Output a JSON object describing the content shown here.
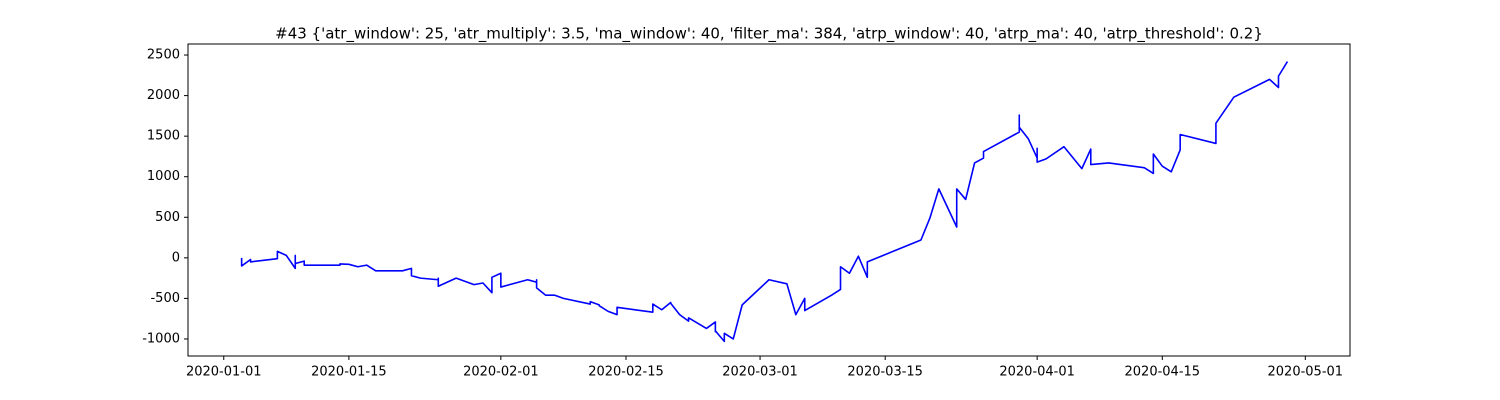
{
  "chart_data": {
    "type": "line",
    "title": "#43 {'atr_window': 25, 'atr_multiply': 3.5, 'ma_window': 40, 'filter_ma': 384, 'atrp_window': 40, 'atrp_ma': 40, 'atrp_threshold': 0.2}",
    "x": [
      "2020-01-03",
      "2020-01-03",
      "2020-01-04",
      "2020-01-04",
      "2020-01-07",
      "2020-01-07",
      "2020-01-08",
      "2020-01-09",
      "2020-01-09",
      "2020-01-09",
      "2020-01-10",
      "2020-01-10",
      "2020-01-14",
      "2020-01-14",
      "2020-01-15",
      "2020-01-16",
      "2020-01-17",
      "2020-01-18",
      "2020-01-21",
      "2020-01-22",
      "2020-01-22",
      "2020-01-22",
      "2020-01-23",
      "2020-01-25",
      "2020-01-25",
      "2020-01-25",
      "2020-01-27",
      "2020-01-29",
      "2020-01-30",
      "2020-01-31",
      "2020-01-31",
      "2020-02-01",
      "2020-02-01",
      "2020-02-04",
      "2020-02-05",
      "2020-02-05",
      "2020-02-05",
      "2020-02-06",
      "2020-02-07",
      "2020-02-08",
      "2020-02-11",
      "2020-02-11",
      "2020-02-12",
      "2020-02-12",
      "2020-02-13",
      "2020-02-14",
      "2020-02-14",
      "2020-02-18",
      "2020-02-18",
      "2020-02-19",
      "2020-02-20",
      "2020-02-20",
      "2020-02-21",
      "2020-02-22",
      "2020-02-22",
      "2020-02-24",
      "2020-02-25",
      "2020-02-25",
      "2020-02-25",
      "2020-02-26",
      "2020-02-26",
      "2020-02-27",
      "2020-02-28",
      "2020-03-02",
      "2020-03-04",
      "2020-03-05",
      "2020-03-06",
      "2020-03-06",
      "2020-03-09",
      "2020-03-10",
      "2020-03-10",
      "2020-03-11",
      "2020-03-12",
      "2020-03-13",
      "2020-03-13",
      "2020-03-13",
      "2020-03-19",
      "2020-03-20",
      "2020-03-21",
      "2020-03-23",
      "2020-03-23",
      "2020-03-23",
      "2020-03-24",
      "2020-03-25",
      "2020-03-26",
      "2020-03-26",
      "2020-03-30",
      "2020-03-30",
      "2020-03-30",
      "2020-03-31",
      "2020-04-01",
      "2020-04-01",
      "2020-04-01",
      "2020-04-02",
      "2020-04-04",
      "2020-04-06",
      "2020-04-07",
      "2020-04-07",
      "2020-04-09",
      "2020-04-13",
      "2020-04-14",
      "2020-04-14",
      "2020-04-14",
      "2020-04-14",
      "2020-04-15",
      "2020-04-16",
      "2020-04-17",
      "2020-04-17",
      "2020-04-21",
      "2020-04-21",
      "2020-04-23",
      "2020-04-27",
      "2020-04-28",
      "2020-04-28",
      "2020-04-29"
    ],
    "series": [
      {
        "color": "#0000ff",
        "values": [
          0,
          -100,
          -20,
          -50,
          -10,
          80,
          30,
          -130,
          30,
          -70,
          -40,
          -90,
          -90,
          -75,
          -80,
          -110,
          -90,
          -160,
          -160,
          -130,
          -150,
          -220,
          -250,
          -270,
          -250,
          -350,
          -250,
          -330,
          -310,
          -430,
          -240,
          -190,
          -360,
          -270,
          -300,
          -270,
          -370,
          -460,
          -460,
          -500,
          -570,
          -540,
          -580,
          -590,
          -660,
          -700,
          -610,
          -670,
          -570,
          -640,
          -550,
          -560,
          -700,
          -780,
          -740,
          -870,
          -790,
          -910,
          -900,
          -1030,
          -930,
          -1000,
          -580,
          -270,
          -320,
          -700,
          -500,
          -650,
          -460,
          -390,
          -110,
          -190,
          20,
          -240,
          -190,
          -50,
          220,
          490,
          850,
          380,
          720,
          850,
          720,
          1170,
          1230,
          1310,
          1550,
          1760,
          1610,
          1470,
          1230,
          1350,
          1180,
          1220,
          1370,
          1100,
          1340,
          1150,
          1170,
          1110,
          1040,
          1200,
          1150,
          1280,
          1130,
          1060,
          1330,
          1520,
          1410,
          1660,
          1980,
          2200,
          2100,
          2240,
          2420
        ]
      }
    ],
    "xlim": [
      "2019-12-28",
      "2020-05-06"
    ],
    "xticks": [
      "2020-01-01",
      "2020-01-15",
      "2020-02-01",
      "2020-02-15",
      "2020-03-01",
      "2020-03-15",
      "2020-04-01",
      "2020-04-15",
      "2020-05-01"
    ],
    "ylim": [
      -1210,
      2636
    ],
    "yticks": [
      -1000,
      -500,
      0,
      500,
      1000,
      1500,
      2000,
      2500
    ]
  }
}
